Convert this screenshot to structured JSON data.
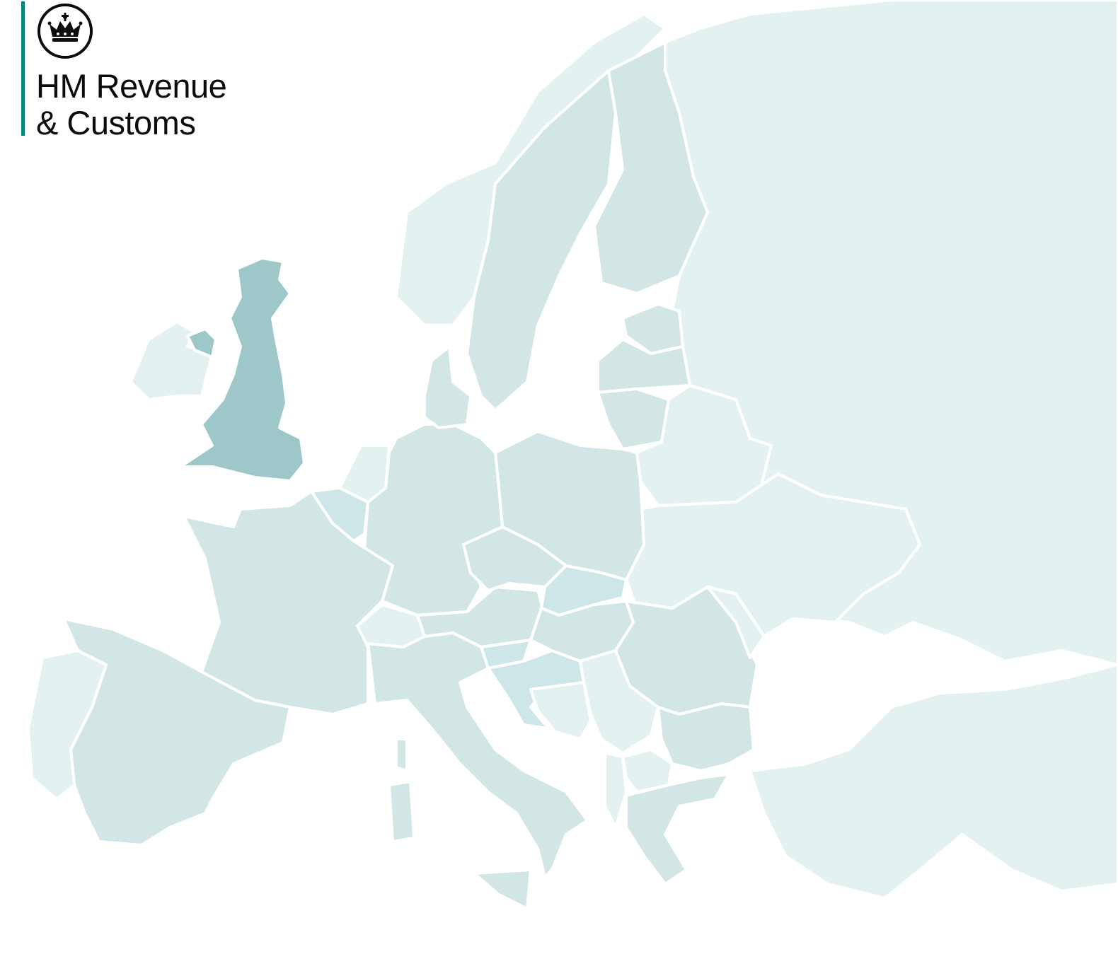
{
  "logo": {
    "line1": "HM Revenue",
    "line2": "& Customs",
    "emblem": "crown-icon",
    "rule_color": "#00847f"
  },
  "map": {
    "highlighted_region": "United Kingdom",
    "colors": {
      "highlight": "#9dc7c8",
      "member": "#d2e6e5",
      "other": "#e3f1f1",
      "border": "#ffffff",
      "sea": "#ffffff"
    }
  }
}
